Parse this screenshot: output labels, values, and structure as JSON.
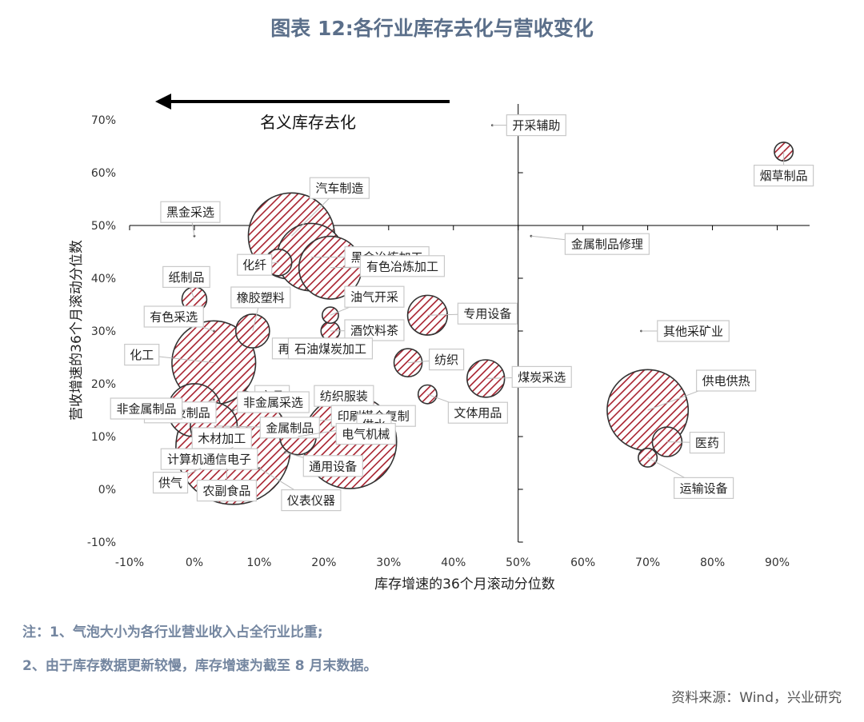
{
  "title": "图表 12:各行业库存去化与营收变化",
  "notes": [
    "注：1、气泡大小为各行业营业收入占全行业比重;",
    "2、由于库存数据更新较慢，库存增速为截至 8 月末数据。"
  ],
  "source": "资料来源：Wind，兴业研究",
  "chart_data": {
    "type": "scatter",
    "title": "图表 12:各行业库存去化与营收变化",
    "xlabel": "库存增速的36个月滚动分位数",
    "ylabel": "营收增速的36个月滚动分位数",
    "xlim": [
      -0.1,
      0.95
    ],
    "ylim": [
      -0.1,
      0.7
    ],
    "xticks": [
      "-10%",
      "0%",
      "10%",
      "20%",
      "30%",
      "40%",
      "50%",
      "60%",
      "70%",
      "80%",
      "90%"
    ],
    "yticks": [
      "-10%",
      "0%",
      "10%",
      "20%",
      "30%",
      "40%",
      "50%",
      "60%",
      "70%"
    ],
    "crosshair": {
      "x": 0.5,
      "y": 0.5
    },
    "arrow_label": "名义库存去化",
    "points": [
      {
        "name": "开采辅助",
        "x": 0.46,
        "y": 0.69,
        "size": 0.05
      },
      {
        "name": "烟草制品",
        "x": 0.91,
        "y": 0.64,
        "size": 0.4
      },
      {
        "name": "黑金采选",
        "x": 0.0,
        "y": 0.48,
        "size": 0.05
      },
      {
        "name": "汽车制造",
        "x": 0.15,
        "y": 0.48,
        "size": 8.5
      },
      {
        "name": "黑金冶炼加工",
        "x": 0.18,
        "y": 0.44,
        "size": 5.2
      },
      {
        "name": "化纤",
        "x": 0.13,
        "y": 0.43,
        "size": 0.8
      },
      {
        "name": "有色冶炼加工",
        "x": 0.21,
        "y": 0.42,
        "size": 4.5
      },
      {
        "name": "金属制品修理",
        "x": 0.52,
        "y": 0.48,
        "size": 0.05
      },
      {
        "name": "纸制品",
        "x": 0.0,
        "y": 0.36,
        "size": 0.7
      },
      {
        "name": "橡胶塑料",
        "x": 0.09,
        "y": 0.3,
        "size": 1.3
      },
      {
        "name": "油气开采",
        "x": 0.21,
        "y": 0.33,
        "size": 0.3
      },
      {
        "name": "专用设备",
        "x": 0.36,
        "y": 0.33,
        "size": 1.8
      },
      {
        "name": "有色采选",
        "x": 0.03,
        "y": 0.3,
        "size": 0.05
      },
      {
        "name": "再生利用",
        "x": 0.16,
        "y": 0.27,
        "size": 0.05
      },
      {
        "name": "酒饮料茶",
        "x": 0.21,
        "y": 0.3,
        "size": 0.4
      },
      {
        "name": "其他采矿业",
        "x": 0.69,
        "y": 0.3,
        "size": 0.05
      },
      {
        "name": "化工",
        "x": 0.03,
        "y": 0.24,
        "size": 8.0
      },
      {
        "name": "石油煤炭加工",
        "x": 0.21,
        "y": 0.27,
        "size": 0.05
      },
      {
        "name": "纺织",
        "x": 0.33,
        "y": 0.24,
        "size": 0.9
      },
      {
        "name": "煤炭采选",
        "x": 0.45,
        "y": 0.21,
        "size": 1.6
      },
      {
        "name": "家具",
        "x": 0.12,
        "y": 0.18,
        "size": 0.05
      },
      {
        "name": "纺织服装",
        "x": 0.2,
        "y": 0.18,
        "size": 0.05
      },
      {
        "name": "皮革及制品",
        "x": 0.03,
        "y": 0.17,
        "size": 0.05
      },
      {
        "name": "供电供热",
        "x": 0.7,
        "y": 0.15,
        "size": 7.5
      },
      {
        "name": "文体用品",
        "x": 0.36,
        "y": 0.18,
        "size": 0.4
      },
      {
        "name": "非金属制品",
        "x": 0.0,
        "y": 0.15,
        "size": 3.2
      },
      {
        "name": "非金属采选",
        "x": 0.06,
        "y": 0.15,
        "size": 0.05
      },
      {
        "name": "印刷媒介复制",
        "x": 0.19,
        "y": 0.13,
        "size": 0.05
      },
      {
        "name": "金属制品",
        "x": 0.03,
        "y": 0.12,
        "size": 2.5
      },
      {
        "name": "木材加工",
        "x": 0.03,
        "y": 0.1,
        "size": 0.05
      },
      {
        "name": "医药",
        "x": 0.73,
        "y": 0.09,
        "size": 1.0
      },
      {
        "name": "供水",
        "x": 0.16,
        "y": 0.1,
        "size": 1.5
      },
      {
        "name": "计算机通信电子",
        "x": 0.06,
        "y": 0.08,
        "size": 15.0
      },
      {
        "name": "电气机械",
        "x": 0.24,
        "y": 0.09,
        "size": 10.0
      },
      {
        "name": "运输设备",
        "x": 0.7,
        "y": 0.06,
        "size": 0.4
      },
      {
        "name": "通用设备",
        "x": 0.14,
        "y": 0.07,
        "size": 0.05
      },
      {
        "name": "供气",
        "x": 0.01,
        "y": 0.04,
        "size": 0.05
      },
      {
        "name": "农副食品",
        "x": 0.05,
        "y": 0.04,
        "size": 0.05
      },
      {
        "name": "仪表仪器",
        "x": 0.1,
        "y": 0.04,
        "size": 0.05
      }
    ]
  }
}
